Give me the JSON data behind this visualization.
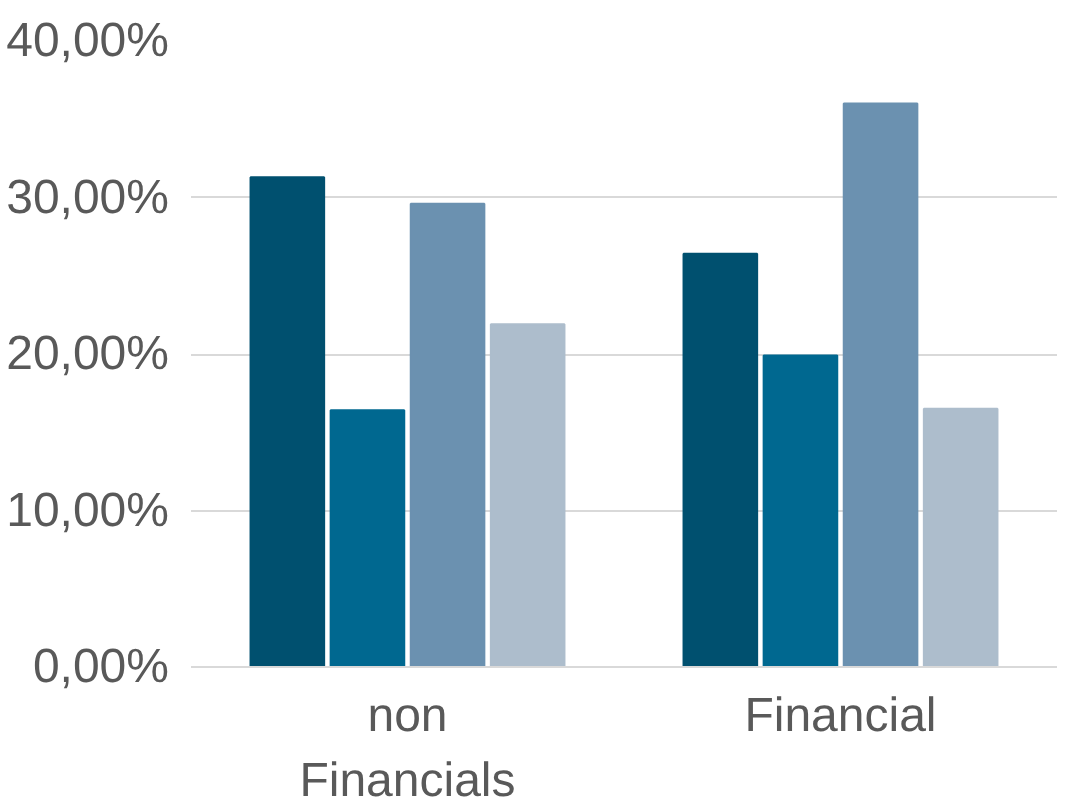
{
  "chart_data": {
    "type": "bar",
    "categories": [
      "non\nFinancials",
      "Financial"
    ],
    "series": [
      {
        "color": "#00506f",
        "values": [
          31.3,
          26.4
        ]
      },
      {
        "color": "#006890",
        "values": [
          16.4,
          19.9
        ]
      },
      {
        "color": "#6b91b0",
        "values": [
          29.6,
          36.0
        ]
      },
      {
        "color": "#adbdcc",
        "values": [
          21.9,
          16.5
        ]
      }
    ],
    "ylim": [
      0,
      40
    ],
    "yticks": [
      {
        "value": 0,
        "label": "0,00%"
      },
      {
        "value": 10,
        "label": "10,00%"
      },
      {
        "value": 20,
        "label": "20,00%"
      },
      {
        "value": 30,
        "label": "30,00%"
      },
      {
        "value": 40,
        "label": "40,00%"
      }
    ],
    "grid": "y"
  }
}
